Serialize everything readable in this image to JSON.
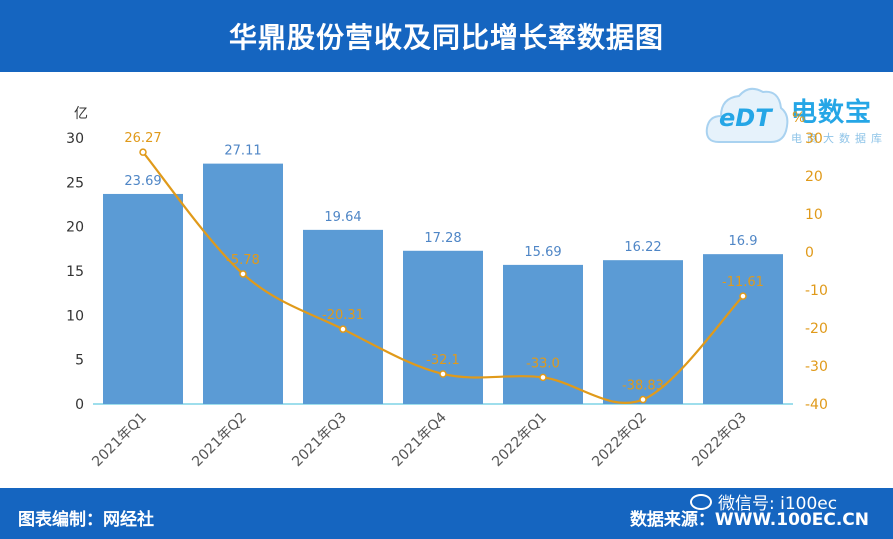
{
  "header": {
    "title": "华鼎股份营收及同比增长率数据图"
  },
  "footer": {
    "editor": "图表编制：网经社",
    "source": "数据来源：WWW.100EC.CN",
    "wechat": "微信号: i100ec"
  },
  "logo": {
    "brand": "电数宝",
    "sub": "电商大数据库",
    "mark": "eDT"
  },
  "colors": {
    "bar": "#5b9bd5",
    "line": "#e09a1a",
    "header": "#1565c0"
  },
  "chart_data": {
    "type": "bar",
    "categories": [
      "2021年Q1",
      "2021年Q2",
      "2021年Q3",
      "2021年Q4",
      "2022年Q1",
      "2022年Q2",
      "2022年Q3"
    ],
    "series": [
      {
        "values": [
          23.69,
          27.11,
          19.64,
          17.28,
          15.69,
          16.22,
          16.9
        ],
        "type": "bar",
        "axis": "left"
      },
      {
        "values": [
          26.27,
          -5.78,
          -20.31,
          -32.1,
          -33.0,
          -38.83,
          -11.61
        ],
        "type": "line",
        "axis": "right"
      }
    ],
    "y_left": {
      "unit": "亿",
      "min": 0,
      "max": 30,
      "ticks": [
        "0",
        "5",
        "10",
        "15",
        "20",
        "25",
        "30"
      ]
    },
    "y_right": {
      "unit": "%",
      "min": -40,
      "max": 30,
      "ticks": [
        "-40",
        "-30",
        "-20",
        "-10",
        "0",
        "10",
        "20",
        "30"
      ]
    },
    "bar_labels": [
      "23.69",
      "27.11",
      "19.64",
      "17.28",
      "15.69",
      "16.22",
      "16.9"
    ],
    "line_labels": [
      "26.27",
      "-5.78",
      "-20.31",
      "-32.1",
      "-33.0",
      "-38.83",
      "-11.61"
    ]
  }
}
